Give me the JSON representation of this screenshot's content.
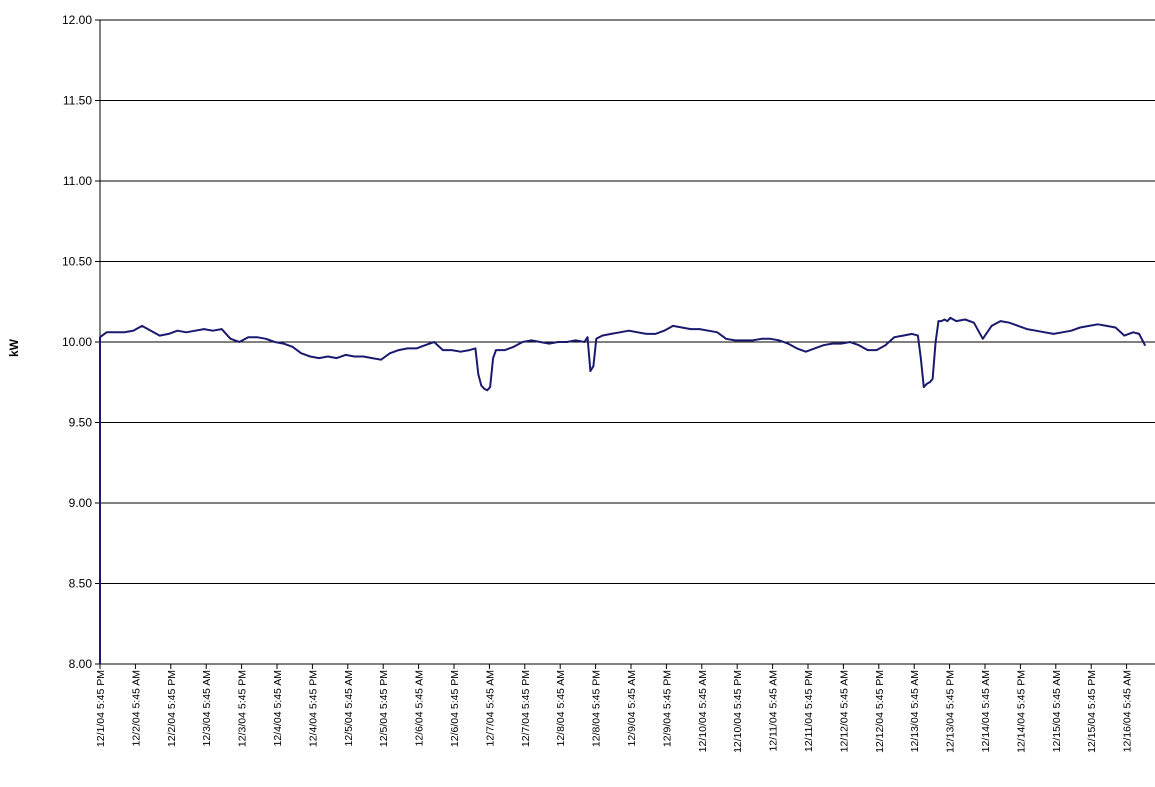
{
  "chart_data": {
    "type": "line",
    "title": "",
    "xlabel": "",
    "ylabel": "kW",
    "ylim": [
      8.0,
      12.0
    ],
    "yticks": [
      "8.00",
      "8.50",
      "9.00",
      "9.50",
      "10.00",
      "10.50",
      "11.00",
      "11.50",
      "12.00"
    ],
    "grid": true,
    "legend": "none",
    "colors": {
      "series": "#1a1a6e",
      "grid": "#000000",
      "axis": "#000000"
    },
    "x_tick_labels": [
      "12/1/04 5:45 PM",
      "12/2/04 5:45 AM",
      "12/2/04 5:45 PM",
      "12/3/04 5:45 AM",
      "12/3/04 5:45 PM",
      "12/4/04 5:45 AM",
      "12/4/04 5:45 PM",
      "12/5/04 5:45 AM",
      "12/5/04 5:45 PM",
      "12/6/04 5:45 AM",
      "12/6/04 5:45 PM",
      "12/7/04 5:45 AM",
      "12/7/04 5:45 PM",
      "12/8/04 5:45 AM",
      "12/8/04 5:45 PM",
      "12/9/04 5:45 AM",
      "12/9/04 5:45 PM",
      "12/10/04 5:45 AM",
      "12/10/04 5:45 PM",
      "12/11/04 5:45 AM",
      "12/11/04 5:45 PM",
      "12/12/04 5:45 AM",
      "12/12/04 5:45 PM",
      "12/13/04 5:45 AM",
      "12/13/04 5:45 PM",
      "12/14/04 5:45 AM",
      "12/14/04 5:45 PM",
      "12/15/04 5:45 AM",
      "12/15/04 5:45 PM",
      "12/16/04 5:45 AM"
    ],
    "series": [
      {
        "x": [
          "12/1/04 5:45 PM",
          "12/1/04 5:45 PM",
          "12/1/04 8:00 PM",
          "12/1/04 11:00 PM",
          "12/2/04 2:00 AM",
          "12/2/04 5:00 AM",
          "12/2/04 8:00 AM",
          "12/2/04 11:00 AM",
          "12/2/04 2:00 PM",
          "12/2/04 5:00 PM",
          "12/2/04 8:00 PM",
          "12/2/04 11:00 PM",
          "12/3/04 2:00 AM",
          "12/3/04 5:00 AM",
          "12/3/04 8:00 AM",
          "12/3/04 11:00 AM",
          "12/3/04 2:00 PM",
          "12/3/04 5:00 PM",
          "12/3/04 8:00 PM",
          "12/3/04 11:00 PM",
          "12/4/04 2:00 AM",
          "12/4/04 5:00 AM",
          "12/4/04 8:00 AM",
          "12/4/04 11:00 AM",
          "12/4/04 2:00 PM",
          "12/4/04 5:00 PM",
          "12/4/04 8:00 PM",
          "12/4/04 11:00 PM",
          "12/5/04 2:00 AM",
          "12/5/04 5:00 AM",
          "12/5/04 8:00 AM",
          "12/5/04 11:00 AM",
          "12/5/04 2:00 PM",
          "12/5/04 5:00 PM",
          "12/5/04 8:00 PM",
          "12/5/04 11:00 PM",
          "12/6/04 2:00 AM",
          "12/6/04 5:00 AM",
          "12/6/04 8:00 AM",
          "12/6/04 11:00 AM",
          "12/6/04 2:00 PM",
          "12/6/04 5:00 PM",
          "12/6/04 8:00 PM",
          "12/6/04 11:00 PM",
          "12/7/04 1:00 AM",
          "12/7/04 2:00 AM",
          "12/7/04 3:00 AM",
          "12/7/04 4:00 AM",
          "12/7/04 5:00 AM",
          "12/7/04 6:00 AM",
          "12/7/04 7:00 AM",
          "12/7/04 8:00 AM",
          "12/7/04 9:00 AM",
          "12/7/04 11:00 AM",
          "12/7/04 2:00 PM",
          "12/7/04 5:00 PM",
          "12/7/04 8:00 PM",
          "12/7/04 11:00 PM",
          "12/8/04 2:00 AM",
          "12/8/04 5:00 AM",
          "12/8/04 8:00 AM",
          "12/8/04 11:00 AM",
          "12/8/04 2:00 PM",
          "12/8/04 3:00 PM",
          "12/8/04 4:00 PM",
          "12/8/04 5:00 PM",
          "12/8/04 6:00 PM",
          "12/8/04 8:00 PM",
          "12/8/04 11:00 PM",
          "12/9/04 2:00 AM",
          "12/9/04 5:00 AM",
          "12/9/04 8:00 AM",
          "12/9/04 11:00 AM",
          "12/9/04 2:00 PM",
          "12/9/04 5:00 PM",
          "12/9/04 8:00 PM",
          "12/9/04 11:00 PM",
          "12/10/04 2:00 AM",
          "12/10/04 5:00 AM",
          "12/10/04 8:00 AM",
          "12/10/04 11:00 AM",
          "12/10/04 2:00 PM",
          "12/10/04 5:00 PM",
          "12/10/04 8:00 PM",
          "12/10/04 11:00 PM",
          "12/11/04 2:00 AM",
          "12/11/04 5:00 AM",
          "12/11/04 8:00 AM",
          "12/11/04 11:00 AM",
          "12/11/04 2:00 PM",
          "12/11/04 5:00 PM",
          "12/11/04 8:00 PM",
          "12/11/04 11:00 PM",
          "12/12/04 2:00 AM",
          "12/12/04 5:00 AM",
          "12/12/04 8:00 AM",
          "12/12/04 11:00 AM",
          "12/12/04 2:00 PM",
          "12/12/04 5:00 PM",
          "12/12/04 8:00 PM",
          "12/12/04 11:00 PM",
          "12/13/04 2:00 AM",
          "12/13/04 5:00 AM",
          "12/13/04 7:00 AM",
          "12/13/04 8:00 AM",
          "12/13/04 9:00 AM",
          "12/13/04 10:00 AM",
          "12/13/04 11:00 AM",
          "12/13/04 12:00 PM",
          "12/13/04 1:00 PM",
          "12/13/04 2:00 PM",
          "12/13/04 3:00 PM",
          "12/13/04 4:00 PM",
          "12/13/04 5:00 PM",
          "12/13/04 6:00 PM",
          "12/13/04 8:00 PM",
          "12/13/04 11:00 PM",
          "12/14/04 2:00 AM",
          "12/14/04 5:00 AM",
          "12/14/04 8:00 AM",
          "12/14/04 11:00 AM",
          "12/14/04 2:00 PM",
          "12/14/04 5:00 PM",
          "12/14/04 8:00 PM",
          "12/14/04 11:00 PM",
          "12/15/04 2:00 AM",
          "12/15/04 5:00 AM",
          "12/15/04 8:00 AM",
          "12/15/04 11:00 AM",
          "12/15/04 2:00 PM",
          "12/15/04 5:00 PM",
          "12/15/04 8:00 PM",
          "12/15/04 11:00 PM",
          "12/16/04 2:00 AM",
          "12/16/04 5:00 AM",
          "12/16/04 8:00 AM",
          "12/16/04 10:00 AM",
          "12/16/04 12:00 PM"
        ],
        "y": [
          8.0,
          10.03,
          10.06,
          10.06,
          10.06,
          10.07,
          10.1,
          10.07,
          10.04,
          10.05,
          10.07,
          10.06,
          10.07,
          10.08,
          10.07,
          10.08,
          10.02,
          10.0,
          10.03,
          10.03,
          10.02,
          10.0,
          9.99,
          9.97,
          9.93,
          9.91,
          9.9,
          9.91,
          9.9,
          9.92,
          9.91,
          9.91,
          9.9,
          9.89,
          9.93,
          9.95,
          9.96,
          9.96,
          9.98,
          10.0,
          9.95,
          9.95,
          9.94,
          9.95,
          9.96,
          9.8,
          9.73,
          9.71,
          9.7,
          9.72,
          9.9,
          9.95,
          9.95,
          9.95,
          9.97,
          10.0,
          10.01,
          10.0,
          9.99,
          10.0,
          10.0,
          10.01,
          10.0,
          10.03,
          9.82,
          9.85,
          10.02,
          10.04,
          10.05,
          10.06,
          10.07,
          10.06,
          10.05,
          10.05,
          10.07,
          10.1,
          10.09,
          10.08,
          10.08,
          10.07,
          10.06,
          10.02,
          10.01,
          10.01,
          10.01,
          10.02,
          10.02,
          10.01,
          9.99,
          9.96,
          9.94,
          9.96,
          9.98,
          9.99,
          9.99,
          10.0,
          9.98,
          9.95,
          9.95,
          9.98,
          10.03,
          10.04,
          10.05,
          10.04,
          9.9,
          9.72,
          9.74,
          9.75,
          9.77,
          10.0,
          10.13,
          10.13,
          10.14,
          10.13,
          10.15,
          10.13,
          10.14,
          10.12,
          10.02,
          10.1,
          10.13,
          10.12,
          10.1,
          10.08,
          10.07,
          10.06,
          10.05,
          10.06,
          10.07,
          10.09,
          10.1,
          10.11,
          10.1,
          10.09,
          10.04,
          10.06,
          10.05,
          9.98
        ]
      }
    ]
  }
}
